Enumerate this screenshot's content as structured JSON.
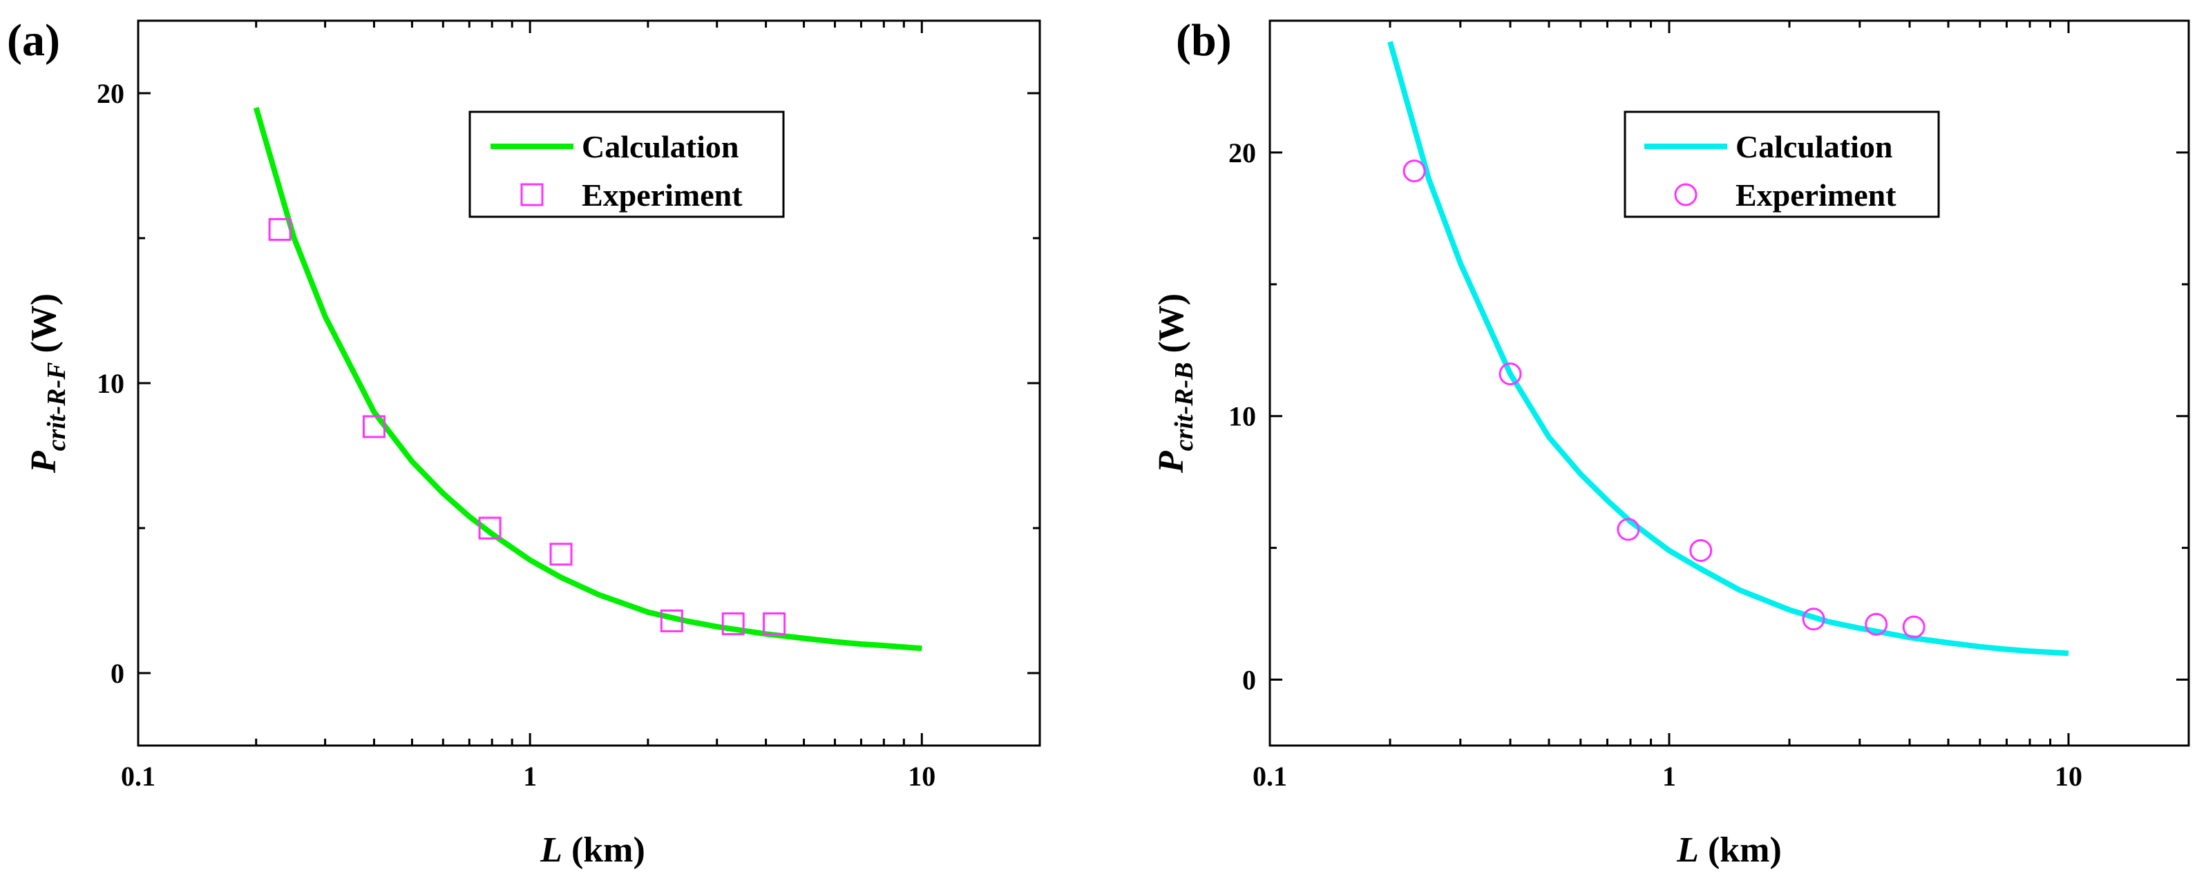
{
  "chart_data": [
    {
      "panel_label": "(a)",
      "type": "line+scatter",
      "xscale": "log",
      "xlim": [
        0.1,
        20
      ],
      "ylim": [
        -2.5,
        22.5
      ],
      "xticks": [
        0.1,
        1,
        10
      ],
      "xtick_labels": [
        "0.1",
        "1",
        "10"
      ],
      "yticks": [
        0,
        10,
        20
      ],
      "ytick_labels": [
        "0",
        "10",
        "20"
      ],
      "xlabel": {
        "var": "L",
        "unit": " (km)"
      },
      "ylabel": {
        "var": "P",
        "sub": "crit-R-F",
        "unit": " (W)"
      },
      "legend": {
        "position": "top-right",
        "calc_label": "Calculation",
        "exp_label": "Experiment"
      },
      "series": [
        {
          "name": "Calculation",
          "kind": "line",
          "color": "#00ee00",
          "x": [
            0.2,
            0.25,
            0.3,
            0.4,
            0.5,
            0.6,
            0.7,
            0.8,
            1.0,
            1.2,
            1.5,
            2.0,
            2.5,
            3.0,
            4.0,
            5.0,
            6.0,
            7.0,
            8.0,
            10.0
          ],
          "y": [
            19.5,
            15.0,
            12.3,
            9.0,
            7.3,
            6.2,
            5.4,
            4.8,
            3.9,
            3.3,
            2.7,
            2.1,
            1.8,
            1.6,
            1.35,
            1.2,
            1.08,
            1.0,
            0.95,
            0.85
          ]
        },
        {
          "name": "Experiment",
          "kind": "scatter",
          "marker": "square",
          "color": "#ff33ff",
          "x": [
            0.23,
            0.4,
            0.79,
            1.2,
            2.3,
            3.3,
            4.2
          ],
          "y": [
            15.3,
            8.5,
            5.0,
            4.1,
            1.8,
            1.7,
            1.7
          ]
        }
      ]
    },
    {
      "panel_label": "(b)",
      "type": "line+scatter",
      "xscale": "log",
      "xlim": [
        0.1,
        20
      ],
      "ylim": [
        -2.5,
        25.0
      ],
      "xticks": [
        0.1,
        1,
        10
      ],
      "xtick_labels": [
        "0.1",
        "1",
        "10"
      ],
      "yticks": [
        0,
        10,
        20
      ],
      "ytick_labels": [
        "0",
        "10",
        "20"
      ],
      "xlabel": {
        "var": "L",
        "unit": " (km)"
      },
      "ylabel": {
        "var": "P",
        "sub": "crit-R-B",
        "unit": " (W)"
      },
      "legend": {
        "position": "top-right",
        "calc_label": "Calculation",
        "exp_label": "Experiment"
      },
      "series": [
        {
          "name": "Calculation",
          "kind": "line",
          "color": "#00eeee",
          "x": [
            0.2,
            0.25,
            0.3,
            0.4,
            0.5,
            0.6,
            0.7,
            0.8,
            1.0,
            1.2,
            1.5,
            2.0,
            2.5,
            3.0,
            4.0,
            5.0,
            6.0,
            7.0,
            8.0,
            10.0
          ],
          "y": [
            24.2,
            19.0,
            15.8,
            11.6,
            9.2,
            7.8,
            6.8,
            6.0,
            4.9,
            4.2,
            3.4,
            2.65,
            2.2,
            1.95,
            1.6,
            1.4,
            1.25,
            1.15,
            1.08,
            1.0
          ]
        },
        {
          "name": "Experiment",
          "kind": "scatter",
          "marker": "circle",
          "color": "#ff33ff",
          "x": [
            0.23,
            0.4,
            0.79,
            1.2,
            2.3,
            3.3,
            4.1
          ],
          "y": [
            19.3,
            11.6,
            5.7,
            4.9,
            2.3,
            2.1,
            2.0
          ]
        }
      ]
    }
  ]
}
